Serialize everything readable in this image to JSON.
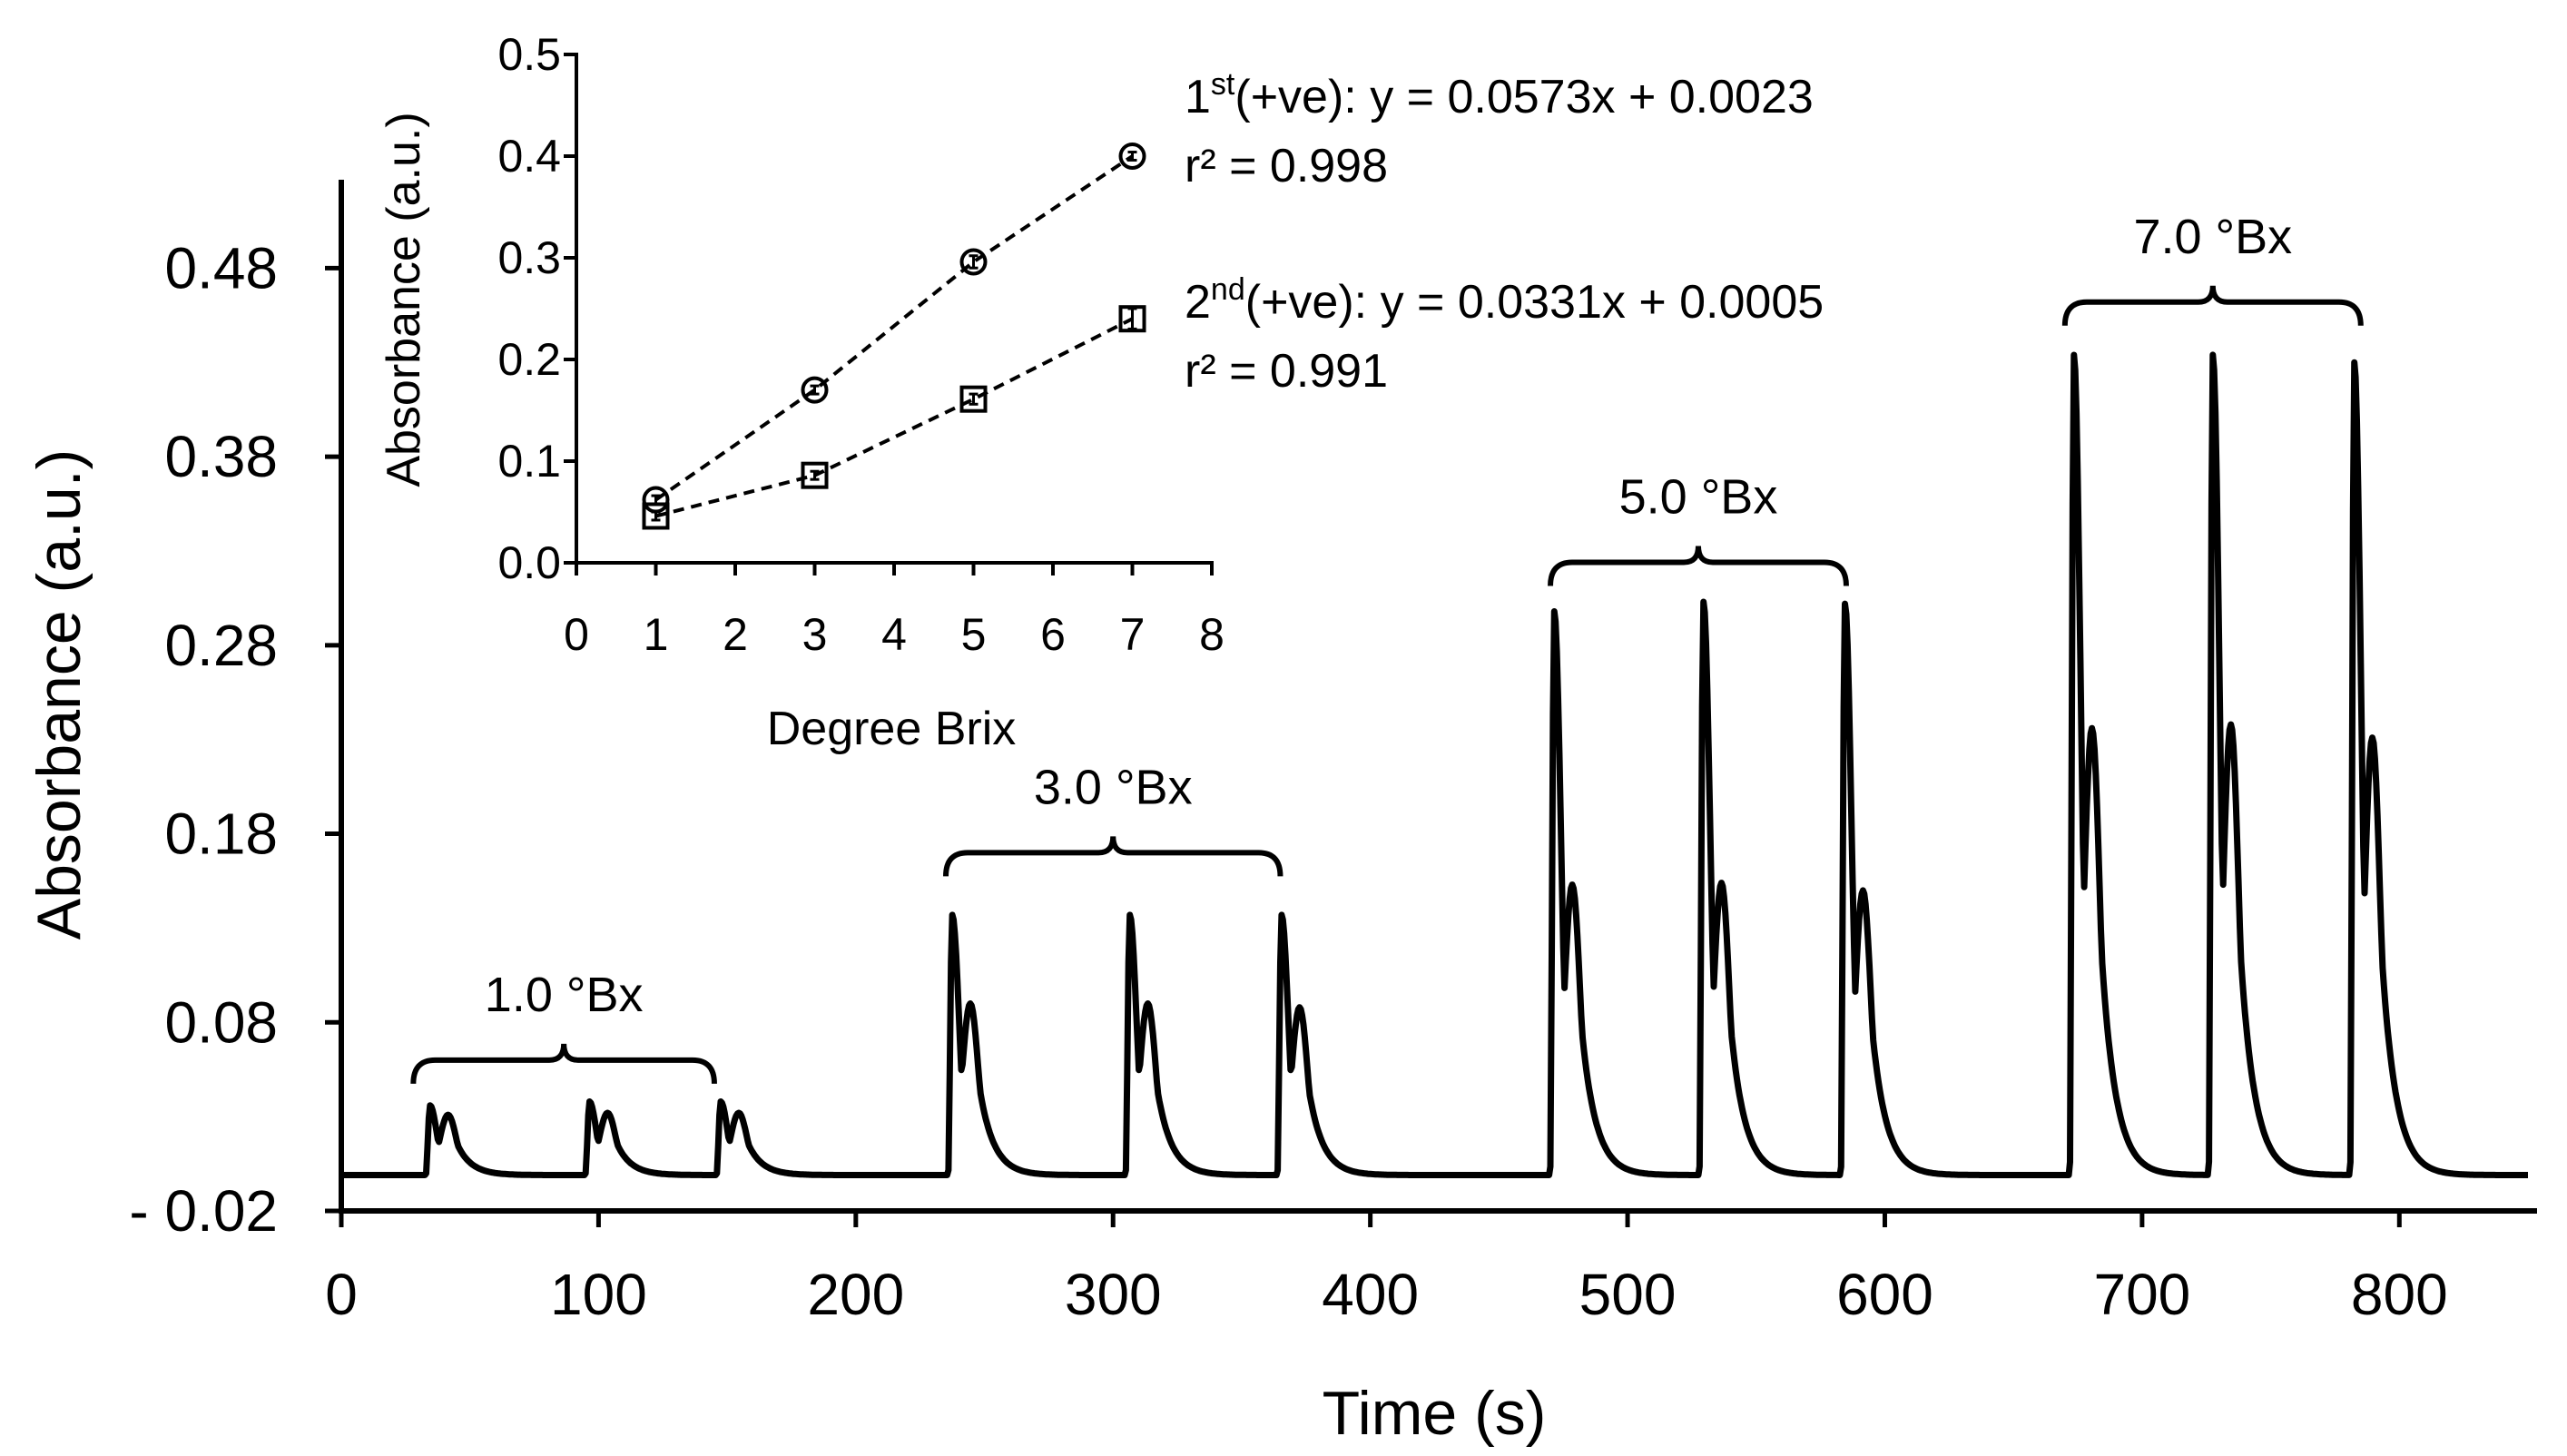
{
  "chart_data": [
    {
      "type": "line",
      "xlabel": "Time (s)",
      "ylabel": "Absorbance (a.u.)",
      "xlim": [
        0,
        850
      ],
      "ylim": [
        -0.02,
        0.55
      ],
      "xticks": [
        0,
        100,
        200,
        300,
        400,
        500,
        600,
        700,
        800
      ],
      "yticks": [
        -0.02,
        0.08,
        0.18,
        0.28,
        0.38,
        0.48
      ],
      "xtick_labels": [
        "0",
        "100",
        "200",
        "300",
        "400",
        "500",
        "600",
        "700",
        "800"
      ],
      "ytick_labels": [
        "- 0.02",
        "0.08",
        "0.18",
        "0.28",
        "0.38",
        "0.48"
      ],
      "baseline": -0.001,
      "series": [
        {
          "peaks": [
            {
              "t": 33,
              "p1": 0.036,
              "p2": 0.031,
              "group": 0
            },
            {
              "t": 95,
              "p1": 0.038,
              "p2": 0.032,
              "group": 0
            },
            {
              "t": 146,
              "p1": 0.038,
              "p2": 0.032,
              "group": 0
            },
            {
              "t": 236,
              "p1": 0.137,
              "p2": 0.09,
              "group": 1
            },
            {
              "t": 305,
              "p1": 0.137,
              "p2": 0.09,
              "group": 1
            },
            {
              "t": 364,
              "p1": 0.137,
              "p2": 0.088,
              "group": 1
            },
            {
              "t": 470,
              "p1": 0.298,
              "p2": 0.153,
              "group": 2
            },
            {
              "t": 528,
              "p1": 0.303,
              "p2": 0.154,
              "group": 2
            },
            {
              "t": 583,
              "p1": 0.302,
              "p2": 0.15,
              "group": 2
            },
            {
              "t": 672,
              "p1": 0.434,
              "p2": 0.236,
              "group": 3
            },
            {
              "t": 726,
              "p1": 0.434,
              "p2": 0.238,
              "group": 3
            },
            {
              "t": 781,
              "p1": 0.43,
              "p2": 0.231,
              "group": 3
            }
          ]
        }
      ],
      "annotations": [
        {
          "label": "1.0 °Bx",
          "x_start": 28,
          "x_end": 145,
          "y": 0.06
        },
        {
          "label": "3.0 °Bx",
          "x_start": 235,
          "x_end": 365,
          "y": 0.17
        },
        {
          "label": "5.0 °Bx",
          "x_start": 470,
          "x_end": 585,
          "y": 0.324
        },
        {
          "label": "7.0 °Bx",
          "x_start": 670,
          "x_end": 785,
          "y": 0.462
        }
      ],
      "colors": {
        "line": "#000000",
        "background": "#ffffff"
      }
    },
    {
      "type": "scatter",
      "xlabel": "Degree Brix",
      "ylabel": "Absorbance (a.u.)",
      "xlim": [
        0,
        8
      ],
      "ylim": [
        0,
        0.5
      ],
      "xticks": [
        0,
        1,
        2,
        3,
        4,
        5,
        6,
        7,
        8
      ],
      "yticks": [
        0.0,
        0.1,
        0.2,
        0.3,
        0.4,
        0.5
      ],
      "xtick_labels": [
        "0",
        "1",
        "2",
        "3",
        "4",
        "5",
        "6",
        "7",
        "8"
      ],
      "ytick_labels": [
        "0.0",
        "0.1",
        "0.2",
        "0.3",
        "0.4",
        "0.5"
      ],
      "series": [
        {
          "marker": "circle",
          "x": [
            1,
            3,
            5,
            7
          ],
          "y": [
            0.062,
            0.17,
            0.296,
            0.4
          ],
          "error": [
            0.004,
            0.004,
            0.006,
            0.004
          ],
          "equation": {
            "prefix": "1",
            "sup": "st",
            "rest": "(+ve): y = 0.0573x + 0.0023"
          },
          "r2": "r² = 0.998"
        },
        {
          "marker": "square",
          "x": [
            1,
            3,
            5,
            7
          ],
          "y": [
            0.046,
            0.086,
            0.161,
            0.24
          ],
          "error": [
            0.004,
            0.004,
            0.005,
            0.01
          ],
          "equation": {
            "prefix": "2",
            "sup": "nd",
            "rest": "(+ve): y = 0.0331x + 0.0005"
          },
          "r2": "r² = 0.991"
        }
      ]
    }
  ]
}
